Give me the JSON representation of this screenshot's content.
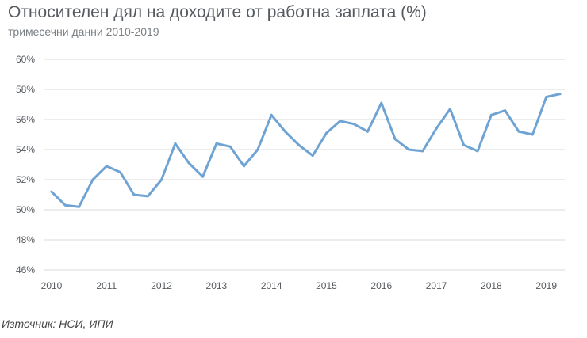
{
  "title": "Относителен дял на доходите от работна заплата (%)",
  "subtitle": "тримесечни данни 2010-2019",
  "source": "Източник: НСИ, ИПИ",
  "chart_data": {
    "type": "line",
    "title": "Относителен дял на доходите от работна заплата (%)",
    "subtitle": "тримесечни данни 2010-2019",
    "xlabel": "",
    "ylabel": "",
    "ylim": [
      46,
      60
    ],
    "yticks": [
      60,
      58,
      56,
      54,
      52,
      50,
      48,
      46
    ],
    "ytick_labels": [
      "60%",
      "58%",
      "56%",
      "54%",
      "52%",
      "50%",
      "48%",
      "46%"
    ],
    "xtick_labels": [
      "2010",
      "2011",
      "2012",
      "2013",
      "2014",
      "2015",
      "2016",
      "2017",
      "2018",
      "2019"
    ],
    "grid": true,
    "color": "#6fa3d3",
    "x": [
      "2010 Q1",
      "2010 Q2",
      "2010 Q3",
      "2010 Q4",
      "2011 Q1",
      "2011 Q2",
      "2011 Q3",
      "2011 Q4",
      "2012 Q1",
      "2012 Q2",
      "2012 Q3",
      "2012 Q4",
      "2013 Q1",
      "2013 Q2",
      "2013 Q3",
      "2013 Q4",
      "2014 Q1",
      "2014 Q2",
      "2014 Q3",
      "2014 Q4",
      "2015 Q1",
      "2015 Q2",
      "2015 Q3",
      "2015 Q4",
      "2016 Q1",
      "2016 Q2",
      "2016 Q3",
      "2016 Q4",
      "2017 Q1",
      "2017 Q2",
      "2017 Q3",
      "2017 Q4",
      "2018 Q1",
      "2018 Q2",
      "2018 Q3",
      "2018 Q4",
      "2019 Q1",
      "2019 Q2"
    ],
    "series": [
      {
        "values": [
          51.2,
          50.3,
          50.2,
          52.0,
          52.9,
          52.5,
          51.0,
          50.9,
          52.0,
          54.4,
          53.1,
          52.2,
          54.4,
          54.2,
          52.9,
          54.0,
          56.3,
          55.2,
          54.3,
          53.6,
          55.1,
          55.9,
          55.7,
          55.2,
          57.1,
          54.7,
          54.0,
          53.9,
          55.4,
          56.7,
          54.3,
          53.9,
          56.3,
          56.6,
          55.2,
          55.0,
          57.5,
          57.7
        ]
      }
    ]
  }
}
